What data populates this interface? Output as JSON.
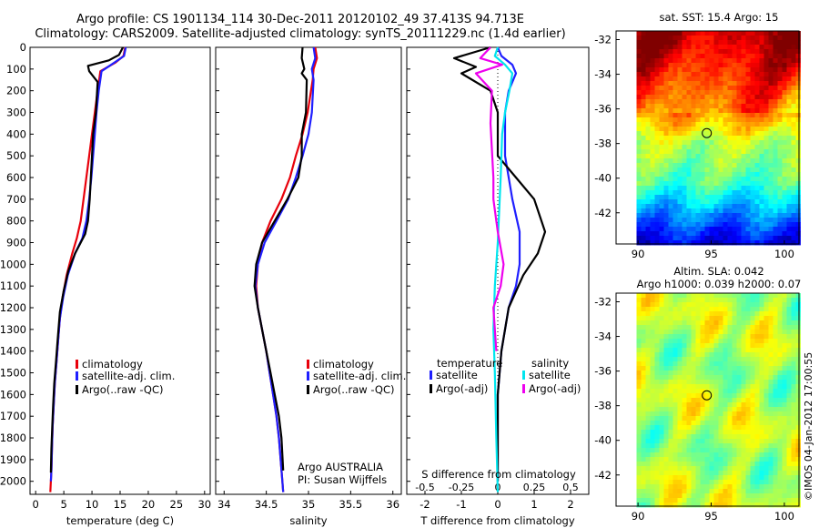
{
  "header": {
    "line1": "Argo profile: CS 1901134_114 30-Dec-2011 20120102_49 37.413S 94.713E",
    "line2": "Climatology: CARS2009. Satellite-adjusted climatology: synTS_20111229.nc (1.4d earlier)"
  },
  "credits": {
    "argo": "Argo AUSTRALIA",
    "pi": "PI: Susan Wijffels",
    "imos": "©IMOS 04-Jan-2012 17:00:55"
  },
  "colors": {
    "climatology": "#e8000b",
    "satellite": "#1f1fff",
    "argo": "#000000",
    "satellite_diff": "#00e5ee",
    "argo_salinity_diff": "#ee00ee"
  },
  "chart_data": [
    {
      "type": "line",
      "id": "temperature",
      "xlabel": "temperature (deg C)",
      "xlim": [
        -1,
        31
      ],
      "xticks": [
        0,
        5,
        10,
        15,
        20,
        25,
        30
      ],
      "ylim": [
        2060,
        0
      ],
      "yticks": [
        0,
        100,
        200,
        300,
        400,
        500,
        600,
        700,
        800,
        900,
        1000,
        1100,
        1200,
        1300,
        1400,
        1500,
        1600,
        1700,
        1800,
        1900,
        2000
      ],
      "legend": [
        "climatology",
        "satellite-adj. clim.",
        "Argo(..raw -QC)"
      ],
      "series": [
        {
          "name": "climatology",
          "color": "#e8000b",
          "x": [
            15.9,
            15.6,
            14.2,
            11.5,
            11.0,
            10.5,
            10.0,
            9.5,
            9.0,
            8.5,
            8.0,
            7.3,
            6.5,
            5.5,
            4.8,
            4.3,
            4.0,
            3.7,
            3.4,
            3.2,
            3.0,
            2.9,
            2.8,
            2.7,
            2.6
          ],
          "y": [
            0,
            40,
            70,
            110,
            200,
            300,
            400,
            500,
            600,
            700,
            800,
            880,
            950,
            1050,
            1150,
            1250,
            1350,
            1450,
            1550,
            1650,
            1750,
            1850,
            1950,
            2000,
            2050
          ]
        },
        {
          "name": "satellite-adj. clim.",
          "color": "#1f1fff",
          "x": [
            16.0,
            15.7,
            14.0,
            11.7,
            11.2,
            10.8,
            10.5,
            10.2,
            9.9,
            9.5,
            9.0,
            8.3,
            7.0,
            5.7,
            4.9,
            4.3,
            4.0,
            3.7,
            3.4,
            3.2,
            3.0,
            2.9,
            2.8,
            2.7
          ],
          "y": [
            0,
            40,
            70,
            110,
            200,
            300,
            400,
            500,
            600,
            700,
            800,
            880,
            950,
            1050,
            1150,
            1250,
            1350,
            1450,
            1550,
            1650,
            1750,
            1850,
            1950,
            2000
          ]
        },
        {
          "name": "Argo(..raw -QC)",
          "color": "#000000",
          "x": [
            15.5,
            14.8,
            13.0,
            9.3,
            9.5,
            11.0,
            10.7,
            10.2,
            10.0,
            9.8,
            9.6,
            9.3,
            8.8,
            8.0,
            7.0,
            5.8,
            5.0,
            4.3,
            3.9,
            3.6,
            3.3,
            3.1,
            2.95,
            2.8,
            2.7
          ],
          "y": [
            0,
            35,
            60,
            85,
            110,
            160,
            300,
            400,
            500,
            600,
            700,
            800,
            860,
            900,
            950,
            1030,
            1120,
            1220,
            1350,
            1450,
            1550,
            1650,
            1750,
            1850,
            1960
          ]
        }
      ]
    },
    {
      "type": "line",
      "id": "salinity",
      "xlabel": "salinity",
      "xlim": [
        33.9,
        36.1
      ],
      "xticks": [
        34,
        34.5,
        35,
        35.5,
        36
      ],
      "xticklabels": [
        "34",
        "34.5",
        "35",
        "35.5",
        "36"
      ],
      "ylim": [
        2060,
        0
      ],
      "legend": [
        "climatology",
        "satellite-adj. clim.",
        "Argo(..raw -QC)"
      ],
      "series": [
        {
          "name": "climatology",
          "color": "#e8000b",
          "x": [
            35.08,
            35.1,
            35.06,
            35.05,
            34.99,
            34.93,
            34.85,
            34.78,
            34.68,
            34.55,
            34.45,
            34.4,
            34.38,
            34.4,
            34.45,
            34.5,
            34.54,
            34.58,
            34.62,
            34.65,
            34.67,
            34.69,
            34.7
          ],
          "y": [
            0,
            50,
            100,
            150,
            300,
            400,
            500,
            600,
            700,
            800,
            900,
            1000,
            1100,
            1200,
            1300,
            1400,
            1500,
            1600,
            1700,
            1800,
            1900,
            2000,
            2050
          ]
        },
        {
          "name": "satellite-adj. clim.",
          "color": "#1f1fff",
          "x": [
            35.06,
            35.08,
            35.04,
            35.06,
            35.04,
            35.0,
            34.93,
            34.85,
            34.76,
            34.62,
            34.48,
            34.4,
            34.37,
            34.4,
            34.45,
            34.5,
            34.54,
            34.58,
            34.62,
            34.65,
            34.67,
            34.69,
            34.7
          ],
          "y": [
            0,
            50,
            100,
            150,
            300,
            400,
            500,
            600,
            700,
            800,
            900,
            1000,
            1100,
            1200,
            1300,
            1400,
            1500,
            1600,
            1700,
            1800,
            1900,
            2000,
            2050
          ]
        },
        {
          "name": "Argo(..raw -QC)",
          "color": "#000000",
          "x": [
            34.93,
            34.92,
            34.95,
            34.92,
            34.98,
            34.97,
            34.92,
            34.92,
            34.88,
            34.75,
            34.6,
            34.45,
            34.38,
            34.36,
            34.4,
            34.45,
            34.5,
            34.55,
            34.6,
            34.65,
            34.68,
            34.7
          ],
          "y": [
            0,
            50,
            100,
            120,
            150,
            300,
            400,
            500,
            600,
            700,
            800,
            900,
            1000,
            1100,
            1200,
            1300,
            1400,
            1500,
            1600,
            1700,
            1800,
            1950
          ]
        }
      ]
    },
    {
      "type": "line",
      "id": "difference",
      "xlabel": "T difference from climatology",
      "toplabel": "S difference from climatology",
      "xlim": [
        -2.5,
        2.5
      ],
      "xticks": [
        -2,
        -1,
        0,
        1,
        2
      ],
      "sticks": [
        -0.5,
        -0.25,
        0,
        0.25,
        0.5
      ],
      "sticklabels": [
        "-0.5",
        "-0.25",
        "0",
        "0.25",
        "0.5"
      ],
      "ylim": [
        2060,
        0
      ],
      "legend_headers": [
        "temperature",
        "salinity"
      ],
      "legend": [
        "satellite",
        "Argo(-adj)",
        "satellite",
        "Argo(-adj)"
      ],
      "series": [
        {
          "name": "temperature satellite",
          "color": "#1f1fff",
          "x": [
            0.0,
            0.1,
            0.4,
            0.5,
            0.3,
            0.2,
            0.2,
            0.3,
            0.4,
            0.6,
            0.6,
            0.5,
            0.3,
            0.1,
            0.0,
            0.0
          ],
          "y": [
            0,
            40,
            80,
            120,
            200,
            300,
            500,
            600,
            700,
            850,
            1000,
            1100,
            1200,
            1400,
            1600,
            2000
          ]
        },
        {
          "name": "temperature Argo(-adj)",
          "color": "#000000",
          "x": [
            -0.2,
            -1.2,
            -0.6,
            -1.0,
            -0.2,
            0.0,
            0.0,
            0.5,
            1.0,
            1.3,
            1.1,
            0.7,
            0.3,
            0.1,
            0.0,
            0.0
          ],
          "y": [
            0,
            50,
            90,
            120,
            200,
            300,
            500,
            600,
            700,
            850,
            950,
            1050,
            1200,
            1400,
            1600,
            2000
          ]
        },
        {
          "name": "salinity satellite",
          "color": "#00e5ee",
          "x": [
            0.0,
            -0.02,
            0.05,
            0.1,
            0.08,
            0.05,
            0.03,
            0.02,
            0.0,
            -0.02,
            -0.03,
            -0.02,
            -0.01,
            0.0
          ],
          "y": [
            0,
            40,
            80,
            120,
            200,
            300,
            400,
            600,
            900,
            1100,
            1300,
            1500,
            1800,
            2050
          ]
        },
        {
          "name": "salinity Argo(-adj)",
          "color": "#ee00ee",
          "x": [
            -0.05,
            -0.12,
            0.03,
            -0.15,
            -0.04,
            -0.05,
            -0.03,
            -0.03,
            0.0,
            0.04,
            0.02,
            -0.03,
            -0.02,
            -0.01
          ],
          "y": [
            0,
            50,
            80,
            120,
            200,
            350,
            600,
            700,
            850,
            1000,
            1100,
            1200,
            1300,
            1400
          ]
        }
      ]
    },
    {
      "type": "heatmap",
      "id": "sst-map",
      "title": "sat. SST: 15.4  Argo: 15",
      "xlim": [
        88.5,
        101
      ],
      "ylim": [
        -43.8,
        -31.5
      ],
      "xticks": [
        90,
        95,
        100
      ],
      "yticks": [
        -32,
        -34,
        -36,
        -38,
        -40,
        -42
      ],
      "marker": [
        94.7,
        -37.4
      ]
    },
    {
      "type": "heatmap",
      "id": "sla-map",
      "title_line1": "Altim. SLA: 0.042",
      "title_line2": "Argo h1000: 0.039 h2000: 0.07",
      "xlim": [
        88.5,
        101
      ],
      "ylim": [
        -43.8,
        -31.5
      ],
      "xticks": [
        90,
        95,
        100
      ],
      "yticks": [
        -32,
        -34,
        -36,
        -38,
        -40,
        -42
      ],
      "marker": [
        94.7,
        -37.4
      ]
    }
  ]
}
